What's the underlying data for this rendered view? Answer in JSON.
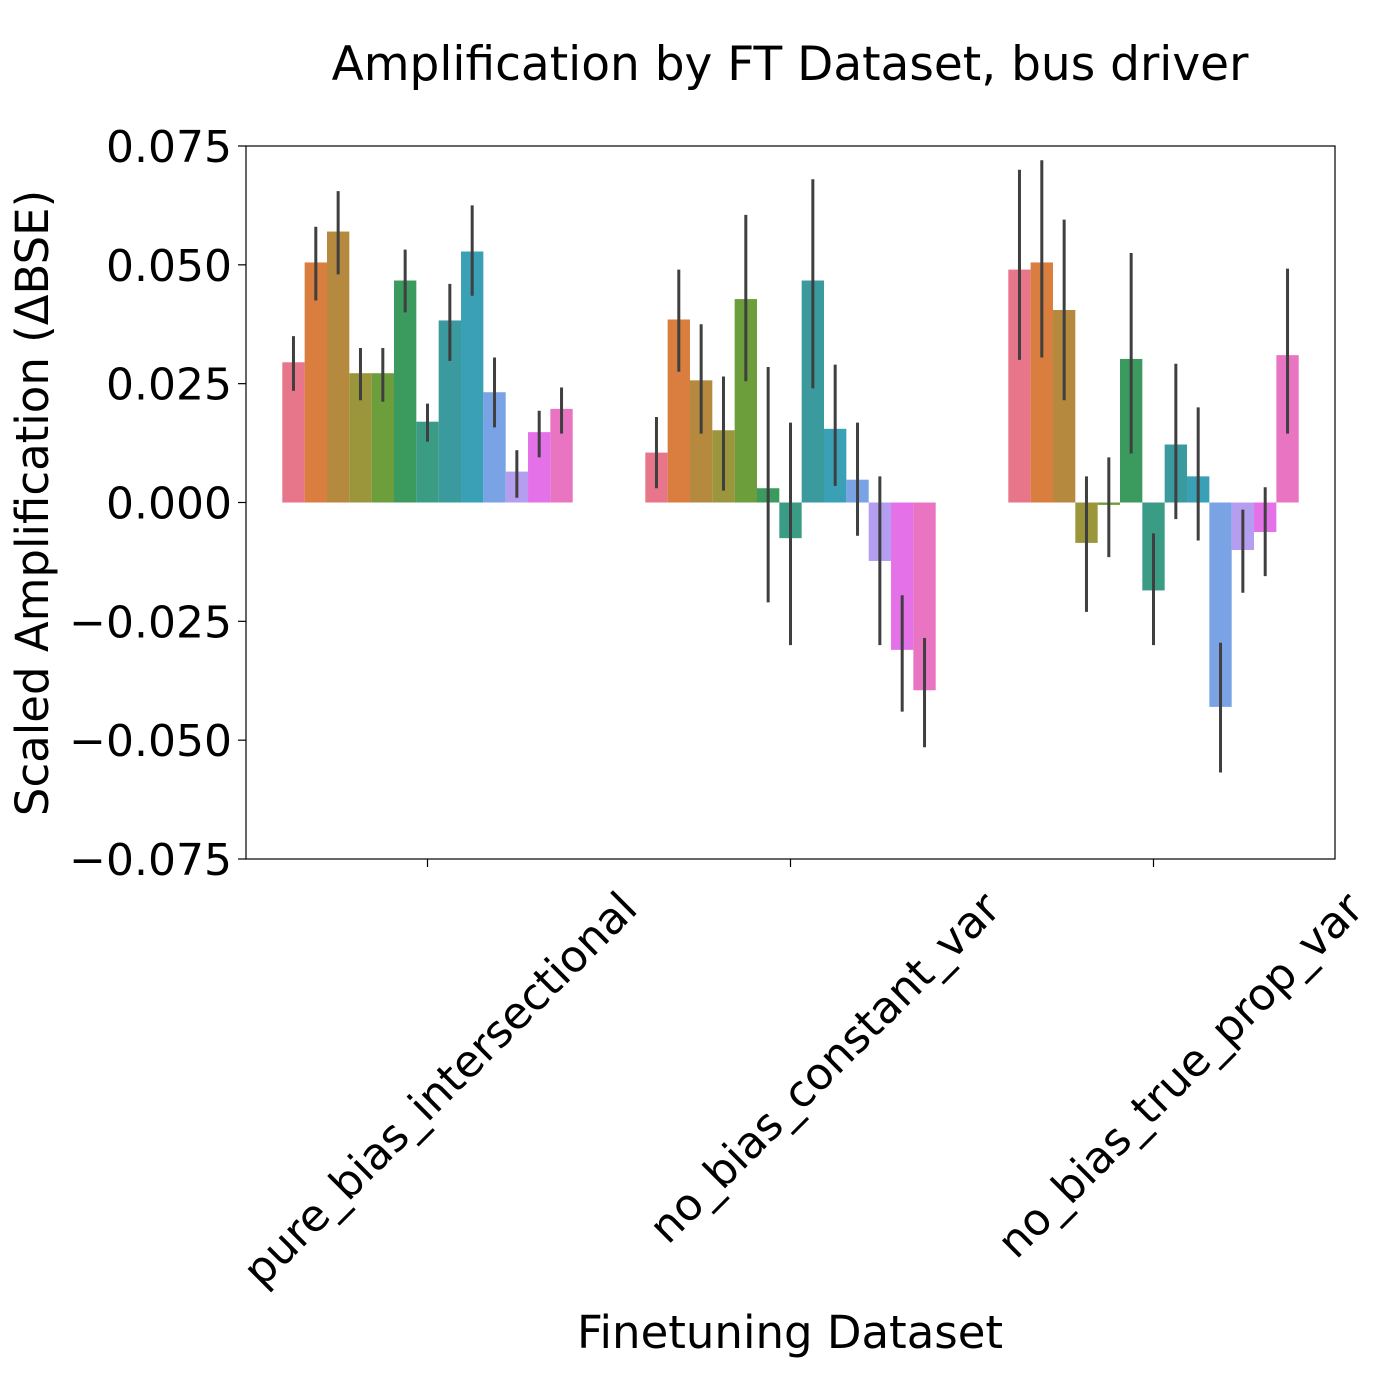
{
  "chart_data": {
    "type": "bar",
    "title": "Amplification by FT Dataset, bus driver",
    "xlabel": "Finetuning Dataset",
    "ylabel": "Scaled Amplification (ΔBSE)",
    "ylim": [
      -0.075,
      0.075
    ],
    "yticks": [
      0.075,
      0.05,
      0.025,
      0.0,
      -0.025,
      -0.05,
      -0.075
    ],
    "ytick_labels": [
      "0.075",
      "0.050",
      "0.025",
      "0.000",
      "−0.025",
      "−0.050",
      "−0.075"
    ],
    "categories": [
      "pure_bias_intersectional",
      "no_bias_constant_var",
      "no_bias_true_prop_var"
    ],
    "grid": false,
    "legend": "none",
    "series_colors": [
      "#e8768a",
      "#d97e3f",
      "#b58a3f",
      "#9b953b",
      "#6d9e3c",
      "#3b9a5d",
      "#3b9c86",
      "#3a9a9d",
      "#3aa0b5",
      "#79a3e5",
      "#b59ef0",
      "#e471e8",
      "#e874c2"
    ],
    "series": [
      {
        "values": [
          0.0295,
          0.0105,
          0.049
        ],
        "err_low": [
          0.0235,
          0.003,
          0.03
        ],
        "err_high": [
          0.035,
          0.018,
          0.07
        ]
      },
      {
        "values": [
          0.0505,
          0.0385,
          0.0505
        ],
        "err_low": [
          0.0425,
          0.0275,
          0.0305
        ],
        "err_high": [
          0.058,
          0.049,
          0.072
        ]
      },
      {
        "values": [
          0.057,
          0.0257,
          0.0405
        ],
        "err_low": [
          0.048,
          0.0145,
          0.0215
        ],
        "err_high": [
          0.0655,
          0.0375,
          0.0595
        ]
      },
      {
        "values": [
          0.0272,
          0.0152,
          -0.0085
        ],
        "err_low": [
          0.0215,
          0.0025,
          -0.023
        ],
        "err_high": [
          0.0325,
          0.0265,
          0.0055
        ]
      },
      {
        "values": [
          0.0272,
          0.0428,
          -0.0005
        ],
        "err_low": [
          0.0212,
          0.0255,
          -0.0115
        ],
        "err_high": [
          0.0325,
          0.0605,
          0.0095
        ]
      },
      {
        "values": [
          0.0467,
          0.003,
          0.0302
        ],
        "err_low": [
          0.04,
          -0.021,
          0.0103
        ],
        "err_high": [
          0.0532,
          0.0285,
          0.0525
        ]
      },
      {
        "values": [
          0.017,
          -0.0075,
          -0.0185
        ],
        "err_low": [
          0.0128,
          -0.03,
          -0.03
        ],
        "err_high": [
          0.0208,
          0.0168,
          -0.0065
        ]
      },
      {
        "values": [
          0.0383,
          0.0467,
          0.0122
        ],
        "err_low": [
          0.0298,
          0.024,
          -0.0035
        ],
        "err_high": [
          0.046,
          0.068,
          0.0292
        ]
      },
      {
        "values": [
          0.0528,
          0.0155,
          0.0055
        ],
        "err_low": [
          0.0435,
          0.0035,
          -0.008
        ],
        "err_high": [
          0.0625,
          0.029,
          0.02
        ]
      },
      {
        "values": [
          0.0232,
          0.0048,
          -0.043
        ],
        "err_low": [
          0.0158,
          -0.007,
          -0.0568
        ],
        "err_high": [
          0.0305,
          0.0168,
          -0.0295
        ]
      },
      {
        "values": [
          0.0065,
          -0.0123,
          -0.01
        ],
        "err_low": [
          0.001,
          -0.03,
          -0.019
        ],
        "err_high": [
          0.011,
          0.0055,
          -0.0015
        ]
      },
      {
        "values": [
          0.0148,
          -0.031,
          -0.0062
        ],
        "err_low": [
          0.0095,
          -0.044,
          -0.0155
        ],
        "err_high": [
          0.0193,
          -0.0195,
          0.0032
        ]
      },
      {
        "values": [
          0.0197,
          -0.0395,
          0.031
        ],
        "err_low": [
          0.0145,
          -0.0515,
          0.0145
        ],
        "err_high": [
          0.0242,
          -0.0285,
          0.0492
        ]
      }
    ]
  }
}
